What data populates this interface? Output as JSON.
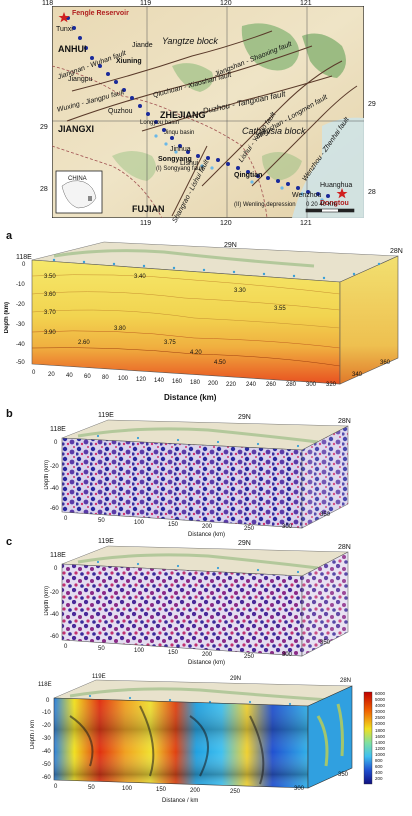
{
  "map": {
    "lon_ticks": [
      "118",
      "119",
      "120",
      "121"
    ],
    "lon_ticks_bottom": [
      "119",
      "120",
      "121"
    ],
    "lat_ticks_left": [
      "29",
      "28"
    ],
    "lat_ticks_right": [
      "29",
      "28"
    ],
    "provinces": [
      "ANHUI",
      "JIANGXI",
      "ZHEJIANG",
      "FUJIAN"
    ],
    "blocks": [
      "Yangtze block",
      "Cathaysia block"
    ],
    "faults": [
      "Jiangshan - Shaoxing fault",
      "Qiuchuan - Xiaoshan fault",
      "Duzhou - Tangxian fault",
      "Lishui - Yuyao fault",
      "Wenzhou - Zhenhai fault",
      "Jiangshan - Longmen fault",
      "Jiangnan - Wuhan fault",
      "Wuxing - Jiangpu fault",
      "Shangrao - Lishui fault"
    ],
    "places": [
      "Fengle Reservoir",
      "Tunxi",
      "Xiuning",
      "Jiangpu",
      "Quzhou",
      "Jinhua",
      "Songyang",
      "Qingtian",
      "Wenzhou",
      "Dongtou",
      "Huanghua",
      "Jiande",
      "Lishui"
    ],
    "features": [
      "(I) Songyang fault",
      "(II) Wenling depression",
      "Longyou basin",
      "Jinqu basin"
    ],
    "inset_label": "CHINA",
    "scale_label": "0  20  40 Km"
  },
  "panel_a": {
    "letter": "a",
    "lon": [
      "118E",
      "29N",
      "28N"
    ],
    "ylabel": "Depth (km)",
    "xlabel": "Distance (km)",
    "yticks": [
      "0",
      "-10",
      "-20",
      "-30",
      "-40",
      "-50"
    ],
    "xticks": [
      "0",
      "20",
      "40",
      "60",
      "80",
      "100",
      "120",
      "140",
      "160",
      "180",
      "200",
      "220",
      "240",
      "260",
      "280",
      "300",
      "320",
      "340",
      "360"
    ],
    "contours": [
      "3.50",
      "3.60",
      "3.70",
      "3.90",
      "4.20",
      "4.50",
      "3.80",
      "3.75",
      "3.55",
      "2.60",
      "3.40",
      "3.30"
    ]
  },
  "panel_b": {
    "letter": "b",
    "lon": [
      "119E",
      "118E",
      "29N",
      "28N"
    ],
    "ylabel": "Depth (km)",
    "xlabel": "Distance (km)",
    "yticks": [
      "0",
      "-20",
      "-40",
      "-60"
    ],
    "xticks": [
      "0",
      "50",
      "100",
      "150",
      "200",
      "250",
      "300",
      "350"
    ]
  },
  "panel_c": {
    "letter": "c",
    "lon": [
      "119E",
      "118E",
      "29N",
      "28N"
    ],
    "ylabel": "Depth (km)",
    "xlabel": "Distance (km)",
    "yticks": [
      "0",
      "-20",
      "-40",
      "-60"
    ],
    "xticks": [
      "0",
      "50",
      "100",
      "150",
      "200",
      "250",
      "300",
      "350"
    ]
  },
  "panel_d": {
    "lon": [
      "118E",
      "119E",
      "29N",
      "28N"
    ],
    "ylabel": "Depth / km",
    "xlabel": "Distance / km",
    "yticks": [
      "0",
      "-10",
      "-20",
      "-30",
      "-40",
      "-50",
      "-60"
    ],
    "xticks": [
      "0",
      "50",
      "100",
      "150",
      "200",
      "250",
      "300",
      "350"
    ],
    "colorbar": [
      "6000",
      "5000",
      "4000",
      "3000",
      "2500",
      "2000",
      "1800",
      "1600",
      "1400",
      "1200",
      "1000",
      "800",
      "600",
      "400",
      "200"
    ]
  },
  "colors": {
    "velocity_top": "#f5e86a",
    "velocity_mid": "#f0b040",
    "velocity_bottom": "#e85020",
    "scatter_blue": "#2a2aa0",
    "scatter_red": "#d03070",
    "station": "#1a2a9a",
    "station_light": "#6ab8e8"
  }
}
